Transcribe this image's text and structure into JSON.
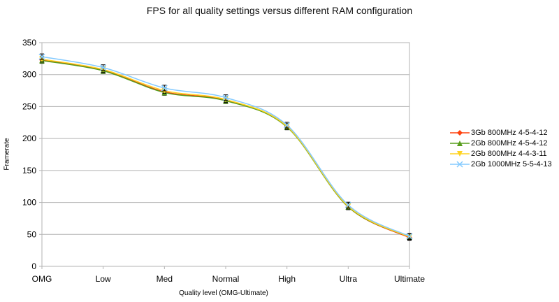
{
  "chart_data": {
    "type": "line",
    "title": "FPS for all quality settings versus different RAM configuration",
    "xlabel": "Quality level (OMG-Ultimate)",
    "ylabel": "Framerate",
    "categories": [
      "OMG",
      "Low",
      "Med",
      "Normal",
      "High",
      "Ultra",
      "Ultimate"
    ],
    "ylim": [
      0,
      350
    ],
    "yticks": [
      0,
      50,
      100,
      150,
      200,
      250,
      300,
      350
    ],
    "grid": true,
    "legend_position": "right",
    "series": [
      {
        "name": "3Gb 800MHz 4-5-4-12",
        "color": "#ff420e",
        "marker": "diamond",
        "values": [
          323,
          307,
          273,
          260,
          219,
          93,
          45
        ]
      },
      {
        "name": "2Gb 800MHz 4-5-4-12",
        "color": "#579d1c",
        "marker": "triangle-up",
        "values": [
          322,
          306,
          272,
          259,
          218,
          93,
          46
        ]
      },
      {
        "name": "2Gb 800MHz 4-4-3-11",
        "color": "#ffd320",
        "marker": "triangle-down",
        "values": [
          324,
          308,
          275,
          261,
          219,
          94,
          46
        ]
      },
      {
        "name": "2Gb 1000MHz 5-5-4-13",
        "color": "#83caff",
        "marker": "cross",
        "values": [
          328,
          311,
          279,
          264,
          221,
          96,
          47
        ]
      }
    ],
    "error_bar_color": "#000000"
  }
}
